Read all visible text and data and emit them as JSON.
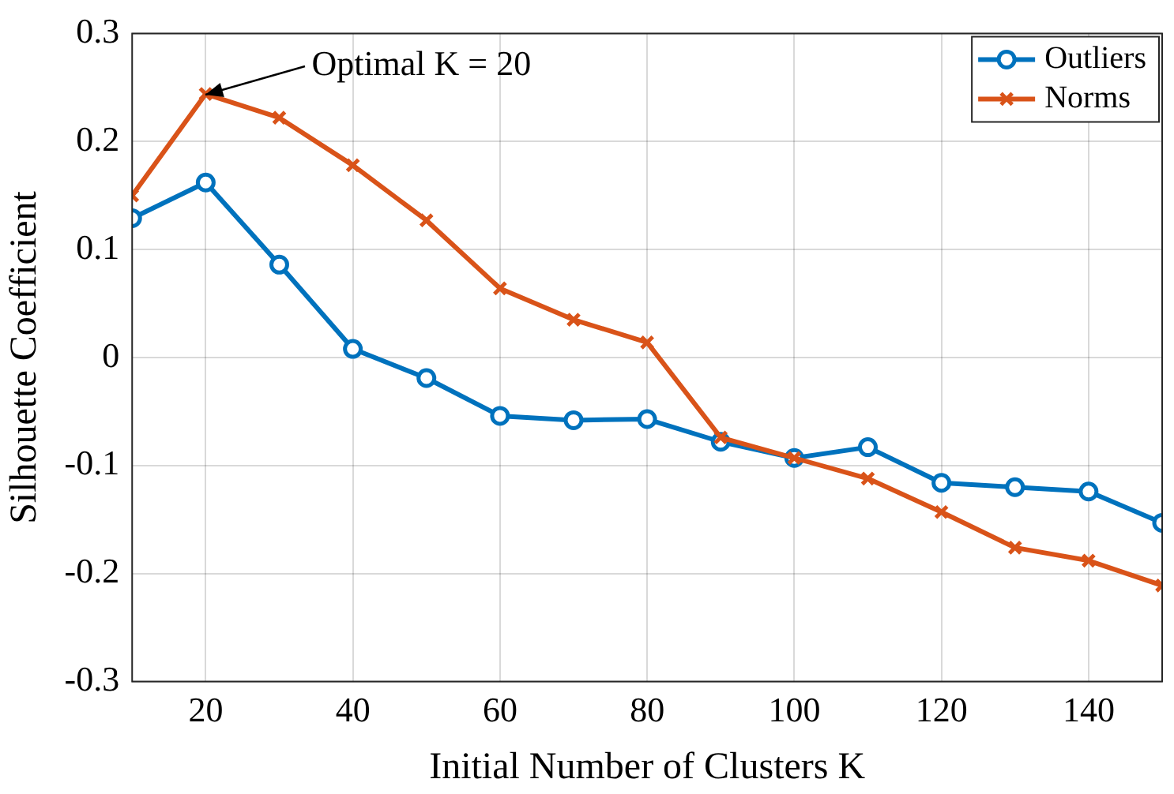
{
  "chart_data": {
    "type": "line",
    "xlabel": "Initial Number of Clusters K",
    "ylabel": "Silhouette Coefficient",
    "x": [
      10,
      20,
      30,
      40,
      50,
      60,
      70,
      80,
      90,
      100,
      110,
      120,
      130,
      140,
      150
    ],
    "series": [
      {
        "name": "Outliers",
        "color": "#0072bd",
        "marker": "circle",
        "values": [
          0.129,
          0.162,
          0.086,
          0.008,
          -0.019,
          -0.054,
          -0.058,
          -0.057,
          -0.078,
          -0.093,
          -0.083,
          -0.116,
          -0.12,
          -0.124,
          -0.153
        ]
      },
      {
        "name": "Norms",
        "color": "#d95319",
        "marker": "cross",
        "values": [
          0.15,
          0.244,
          0.222,
          0.178,
          0.127,
          0.064,
          0.035,
          0.014,
          -0.074,
          -0.093,
          -0.112,
          -0.143,
          -0.176,
          -0.188,
          -0.211
        ]
      }
    ],
    "xlim": [
      10,
      150
    ],
    "xticks": [
      20,
      40,
      60,
      80,
      100,
      120,
      140
    ],
    "ylim": [
      -0.3,
      0.3
    ],
    "yticks": [
      -0.3,
      -0.2,
      -0.1,
      0,
      0.1,
      0.2,
      0.3
    ],
    "grid": true,
    "legend": "top right",
    "line_style": "solid",
    "annotations": [
      {
        "text": "Optimal K = 20",
        "x": 20,
        "y": 0.244
      }
    ]
  }
}
